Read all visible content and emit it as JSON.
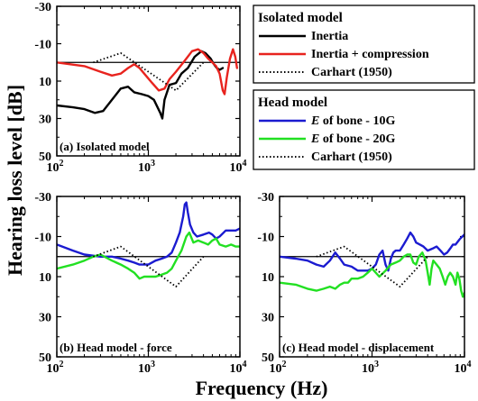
{
  "figure": {
    "ylabel": "Hearing loss level [dB]",
    "xlabel": "Frequency (Hz)",
    "colors": {
      "black": "#000000",
      "red": "#e8231e",
      "blue": "#1b1bd0",
      "green": "#22e022"
    }
  },
  "legends": [
    {
      "title": "Isolated model",
      "entries": [
        {
          "label": "Inertia",
          "color": "#000000",
          "dash": "solid"
        },
        {
          "label": "Inertia + compression",
          "color": "#e8231e",
          "dash": "solid"
        },
        {
          "label": "Carhart (1950)",
          "color": "#000000",
          "dash": "dotted"
        }
      ]
    },
    {
      "title": "Head model",
      "entries": [
        {
          "prefix": "E",
          "label": " of bone - 10G",
          "color": "#1b1bd0",
          "dash": "solid"
        },
        {
          "prefix": "E",
          "label": " of bone - 20G",
          "color": "#22e022",
          "dash": "solid"
        },
        {
          "label": "Carhart (1950)",
          "color": "#000000",
          "dash": "dotted"
        }
      ]
    }
  ],
  "chart_data": [
    {
      "type": "line",
      "title": "(a) Isolated model",
      "xscale": "log",
      "xlim": [
        100,
        10000
      ],
      "ylim": [
        -30,
        50
      ],
      "yinverted": true,
      "yticks": [
        "-30",
        "-10",
        "10",
        "30",
        "50"
      ],
      "yticks_values": [
        -30,
        -10,
        10,
        30,
        50
      ],
      "xticks": [
        {
          "base": "10",
          "exp": "2"
        },
        {
          "base": "10",
          "exp": "3"
        },
        {
          "base": "10",
          "exp": "4"
        }
      ],
      "xticks_values": [
        100,
        1000,
        10000
      ],
      "reference_line": 0,
      "series": [
        {
          "name": "Inertia",
          "color": "#000000",
          "dash": "solid",
          "points": [
            [
              100,
              23
            ],
            [
              150,
              24
            ],
            [
              200,
              25
            ],
            [
              260,
              27
            ],
            [
              320,
              26
            ],
            [
              400,
              20
            ],
            [
              500,
              14
            ],
            [
              600,
              13
            ],
            [
              700,
              16
            ],
            [
              850,
              17
            ],
            [
              1000,
              18
            ],
            [
              1150,
              20
            ],
            [
              1350,
              27
            ],
            [
              1420,
              30
            ],
            [
              1500,
              20
            ],
            [
              1700,
              12
            ],
            [
              2000,
              11
            ],
            [
              2300,
              6
            ],
            [
              2700,
              3
            ],
            [
              3200,
              -3
            ],
            [
              3800,
              -6
            ],
            [
              4200,
              -5
            ],
            [
              4800,
              -2
            ],
            [
              5200,
              1
            ],
            [
              5600,
              3
            ],
            [
              6000,
              4
            ],
            [
              6500,
              3
            ]
          ]
        },
        {
          "name": "Inertia + compression",
          "color": "#e8231e",
          "dash": "solid",
          "points": [
            [
              100,
              0
            ],
            [
              200,
              2
            ],
            [
              300,
              5
            ],
            [
              400,
              7
            ],
            [
              500,
              6
            ],
            [
              600,
              3
            ],
            [
              700,
              1
            ],
            [
              800,
              3
            ],
            [
              900,
              6
            ],
            [
              1100,
              11
            ],
            [
              1300,
              15
            ],
            [
              1500,
              14
            ],
            [
              1700,
              9
            ],
            [
              2000,
              5
            ],
            [
              2500,
              -1
            ],
            [
              3000,
              -6
            ],
            [
              3500,
              -7
            ],
            [
              4000,
              -5
            ],
            [
              4500,
              -2
            ],
            [
              5000,
              0
            ],
            [
              5500,
              2
            ],
            [
              6000,
              6
            ],
            [
              6500,
              15
            ],
            [
              6800,
              17
            ],
            [
              7200,
              8
            ],
            [
              7800,
              -2
            ],
            [
              8400,
              -7
            ],
            [
              8900,
              -3
            ],
            [
              9300,
              3
            ]
          ]
        },
        {
          "name": "Carhart (1950)",
          "color": "#000000",
          "dash": "dotted",
          "points": [
            [
              250,
              0
            ],
            [
              500,
              -5
            ],
            [
              1000,
              5
            ],
            [
              2000,
              15
            ],
            [
              4000,
              0
            ]
          ]
        }
      ]
    },
    {
      "type": "line",
      "title": "(b) Head model - force",
      "xscale": "log",
      "xlim": [
        100,
        10000
      ],
      "ylim": [
        -30,
        50
      ],
      "yinverted": true,
      "yticks": [
        "-30",
        "-10",
        "10",
        "30",
        "50"
      ],
      "yticks_values": [
        -30,
        -10,
        10,
        30,
        50
      ],
      "xticks": [
        {
          "base": "10",
          "exp": "2"
        },
        {
          "base": "10",
          "exp": "3"
        },
        {
          "base": "10",
          "exp": "4"
        }
      ],
      "xticks_values": [
        100,
        1000,
        10000
      ],
      "reference_line": 0,
      "series": [
        {
          "name": "E of bone - 10G",
          "color": "#1b1bd0",
          "dash": "solid",
          "points": [
            [
              100,
              -6
            ],
            [
              150,
              -3
            ],
            [
              200,
              -1
            ],
            [
              300,
              0
            ],
            [
              400,
              0
            ],
            [
              500,
              1
            ],
            [
              600,
              2
            ],
            [
              700,
              3
            ],
            [
              800,
              4
            ],
            [
              900,
              4
            ],
            [
              1000,
              4
            ],
            [
              1200,
              2
            ],
            [
              1400,
              1
            ],
            [
              1600,
              0
            ],
            [
              1800,
              -2
            ],
            [
              2000,
              -7
            ],
            [
              2200,
              -12
            ],
            [
              2400,
              -20
            ],
            [
              2500,
              -26
            ],
            [
              2600,
              -27
            ],
            [
              2700,
              -22
            ],
            [
              2850,
              -16
            ],
            [
              3100,
              -12
            ],
            [
              3400,
              -10
            ],
            [
              4000,
              -11
            ],
            [
              4600,
              -12
            ],
            [
              5000,
              -11
            ],
            [
              5500,
              -9
            ],
            [
              6000,
              -10
            ],
            [
              7000,
              -13
            ],
            [
              8000,
              -13
            ],
            [
              9000,
              -13
            ],
            [
              10000,
              -14
            ]
          ]
        },
        {
          "name": "E of bone - 20G",
          "color": "#22e022",
          "dash": "solid",
          "points": [
            [
              100,
              6
            ],
            [
              150,
              4
            ],
            [
              200,
              2
            ],
            [
              250,
              0
            ],
            [
              300,
              -1
            ],
            [
              400,
              2
            ],
            [
              500,
              4
            ],
            [
              600,
              6
            ],
            [
              700,
              8
            ],
            [
              800,
              11
            ],
            [
              900,
              10
            ],
            [
              1000,
              10
            ],
            [
              1200,
              10
            ],
            [
              1400,
              9
            ],
            [
              1600,
              8
            ],
            [
              1800,
              6
            ],
            [
              2000,
              2
            ],
            [
              2300,
              -3
            ],
            [
              2600,
              -10
            ],
            [
              2800,
              -12
            ],
            [
              3100,
              -7
            ],
            [
              3500,
              -8
            ],
            [
              4000,
              -7
            ],
            [
              4500,
              -6
            ],
            [
              5000,
              -8
            ],
            [
              5500,
              -9
            ],
            [
              6000,
              -6
            ],
            [
              7000,
              -5
            ],
            [
              8000,
              -6
            ],
            [
              9000,
              -5
            ],
            [
              10000,
              -5
            ]
          ]
        },
        {
          "name": "Carhart (1950)",
          "color": "#000000",
          "dash": "dotted",
          "points": [
            [
              250,
              0
            ],
            [
              500,
              -5
            ],
            [
              1000,
              5
            ],
            [
              2000,
              15
            ],
            [
              4000,
              0
            ]
          ]
        }
      ]
    },
    {
      "type": "line",
      "title": "(c) Head model - displacement",
      "xscale": "log",
      "xlim": [
        100,
        10000
      ],
      "ylim": [
        -30,
        50
      ],
      "yinverted": true,
      "yticks": [
        "-30",
        "-10",
        "10",
        "30",
        "50"
      ],
      "yticks_values": [
        -30,
        -10,
        10,
        30,
        50
      ],
      "xticks": [
        {
          "base": "10",
          "exp": "2"
        },
        {
          "base": "10",
          "exp": "3"
        },
        {
          "base": "10",
          "exp": "4"
        }
      ],
      "xticks_values": [
        100,
        1000,
        10000
      ],
      "reference_line": 0,
      "series": [
        {
          "name": "E of bone - 10G",
          "color": "#1b1bd0",
          "dash": "solid",
          "points": [
            [
              100,
              0
            ],
            [
              150,
              1
            ],
            [
              200,
              2
            ],
            [
              250,
              4
            ],
            [
              300,
              5
            ],
            [
              350,
              2
            ],
            [
              400,
              -2
            ],
            [
              450,
              1
            ],
            [
              500,
              4
            ],
            [
              600,
              5
            ],
            [
              700,
              7
            ],
            [
              800,
              7
            ],
            [
              900,
              7
            ],
            [
              1000,
              6
            ],
            [
              1100,
              4
            ],
            [
              1200,
              -1
            ],
            [
              1300,
              -3
            ],
            [
              1400,
              4
            ],
            [
              1500,
              7
            ],
            [
              1600,
              1
            ],
            [
              1700,
              -2
            ],
            [
              1800,
              -3
            ],
            [
              2000,
              -3
            ],
            [
              2200,
              -6
            ],
            [
              2400,
              -9
            ],
            [
              2600,
              -12
            ],
            [
              2800,
              -10
            ],
            [
              3000,
              -7
            ],
            [
              3300,
              -6
            ],
            [
              3600,
              -5
            ],
            [
              4000,
              -3
            ],
            [
              4500,
              -4
            ],
            [
              5000,
              -5
            ],
            [
              5500,
              -3
            ],
            [
              6000,
              -1
            ],
            [
              6500,
              -2
            ],
            [
              7000,
              -4
            ],
            [
              7500,
              -6
            ],
            [
              8000,
              -6
            ],
            [
              9000,
              -9
            ],
            [
              10000,
              -11
            ]
          ]
        },
        {
          "name": "E of bone - 20G",
          "color": "#22e022",
          "dash": "solid",
          "points": [
            [
              100,
              13
            ],
            [
              150,
              14
            ],
            [
              200,
              16
            ],
            [
              250,
              17
            ],
            [
              300,
              16
            ],
            [
              350,
              15
            ],
            [
              400,
              16
            ],
            [
              450,
              14
            ],
            [
              500,
              13
            ],
            [
              550,
              13
            ],
            [
              600,
              11
            ],
            [
              700,
              11
            ],
            [
              800,
              10
            ],
            [
              900,
              8
            ],
            [
              1000,
              6
            ],
            [
              1200,
              10
            ],
            [
              1400,
              7
            ],
            [
              1600,
              4
            ],
            [
              1800,
              3
            ],
            [
              2000,
              2
            ],
            [
              2200,
              0
            ],
            [
              2400,
              -1
            ],
            [
              2600,
              -1
            ],
            [
              2800,
              3
            ],
            [
              3000,
              4
            ],
            [
              3200,
              0
            ],
            [
              3500,
              -2
            ],
            [
              3800,
              2
            ],
            [
              4000,
              8
            ],
            [
              4200,
              14
            ],
            [
              4400,
              6
            ],
            [
              4600,
              2
            ],
            [
              5000,
              4
            ],
            [
              5400,
              6
            ],
            [
              5800,
              10
            ],
            [
              6200,
              14
            ],
            [
              6600,
              10
            ],
            [
              7000,
              8
            ],
            [
              7500,
              10
            ],
            [
              8000,
              14
            ],
            [
              8400,
              8
            ],
            [
              8800,
              11
            ],
            [
              9200,
              17
            ],
            [
              9600,
              20
            ],
            [
              10000,
              18
            ]
          ]
        },
        {
          "name": "Carhart (1950)",
          "color": "#000000",
          "dash": "dotted",
          "points": [
            [
              250,
              0
            ],
            [
              500,
              -5
            ],
            [
              1000,
              5
            ],
            [
              2000,
              15
            ],
            [
              4000,
              0
            ]
          ]
        }
      ]
    }
  ]
}
